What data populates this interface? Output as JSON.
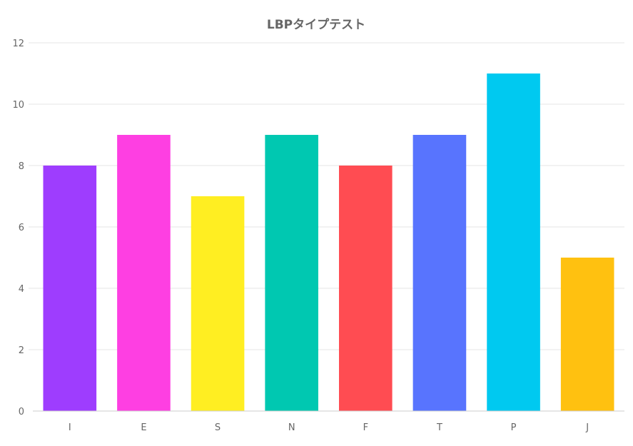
{
  "chart_data": {
    "type": "bar",
    "title": "LBPタイプテスト",
    "categories": [
      "I",
      "E",
      "S",
      "N",
      "F",
      "T",
      "P",
      "J"
    ],
    "values": [
      8,
      9,
      7,
      9,
      8,
      9,
      11,
      5
    ],
    "colors": [
      "#9e3dfe",
      "#fe3fe2",
      "#ffee22",
      "#00c8b1",
      "#ff4c52",
      "#5874fe",
      "#00c9f0",
      "#ffc110"
    ],
    "ylim": [
      0,
      12
    ],
    "yticks": [
      0,
      2,
      4,
      6,
      8,
      10,
      12
    ],
    "xlabel": "",
    "ylabel": "",
    "grid": true,
    "legend": "none"
  }
}
